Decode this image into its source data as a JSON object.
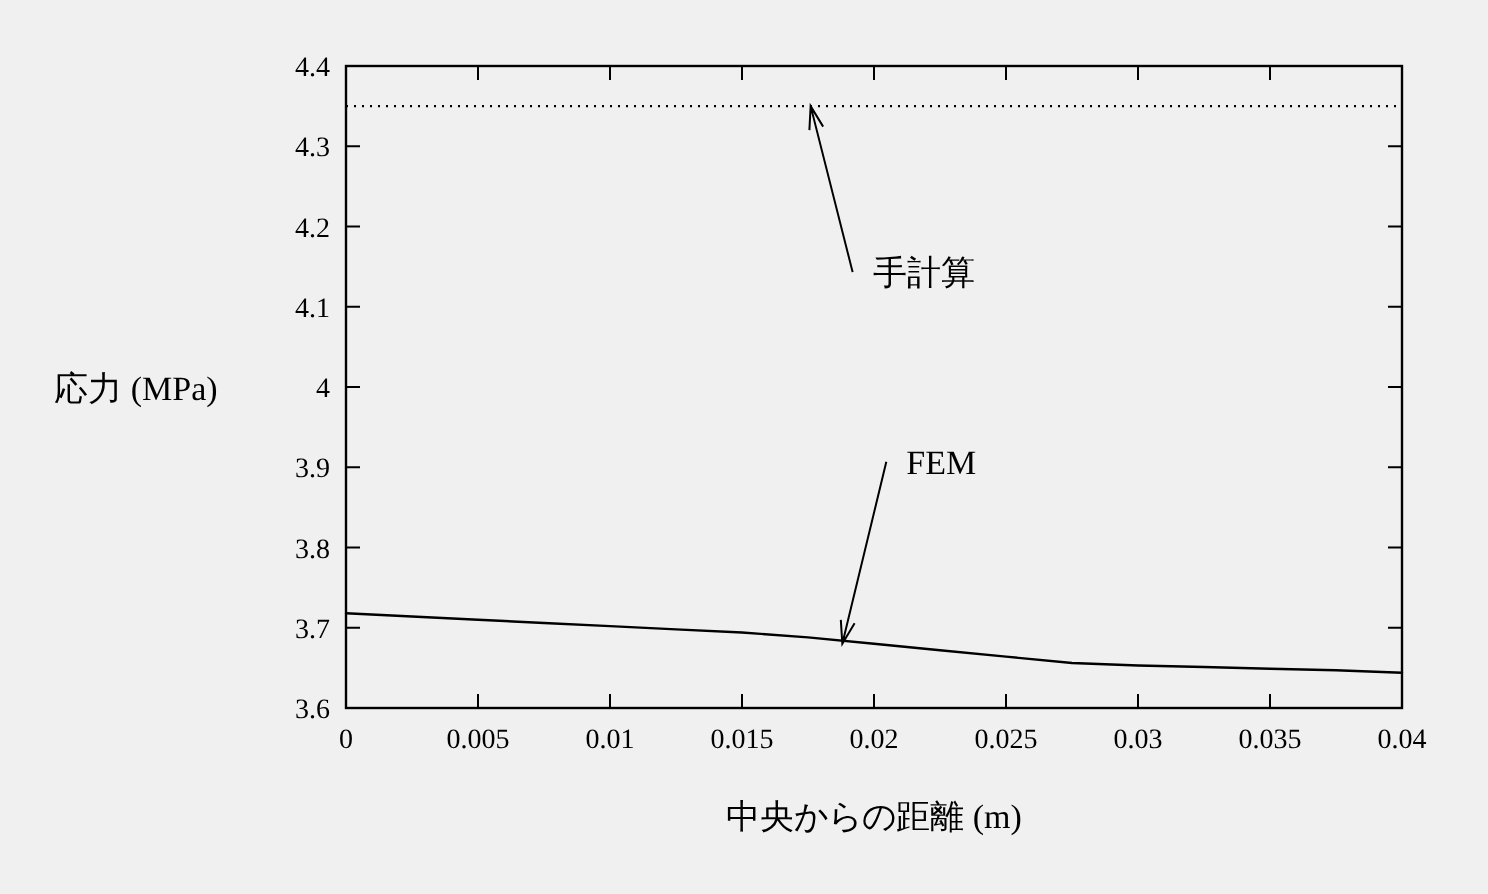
{
  "chart_data": {
    "type": "line",
    "xlabel": "中央からの距離 (m)",
    "ylabel": "応力 (MPa)",
    "xlim": [
      0,
      0.04
    ],
    "ylim": [
      3.6,
      4.4
    ],
    "xticks": [
      0,
      0.005,
      0.01,
      0.015,
      0.02,
      0.025,
      0.03,
      0.035,
      0.04
    ],
    "yticks": [
      3.6,
      3.7,
      3.8,
      3.9,
      4,
      4.1,
      4.2,
      4.3,
      4.4
    ],
    "grid": false,
    "series": [
      {
        "color": "#000000",
        "line_style": "solid",
        "x": [
          0,
          0.0025,
          0.005,
          0.0075,
          0.01,
          0.0125,
          0.015,
          0.0175,
          0.02,
          0.0225,
          0.025,
          0.0275,
          0.03,
          0.0325,
          0.035,
          0.0375,
          0.04
        ],
        "values": [
          3.718,
          3.714,
          3.71,
          3.706,
          3.702,
          3.698,
          3.694,
          3.688,
          3.68,
          3.672,
          3.664,
          3.656,
          3.653,
          3.651,
          3.649,
          3.647,
          3.644
        ]
      },
      {
        "color": "#000000",
        "line_style": "dotted",
        "x": [
          0,
          0.04
        ],
        "values": [
          4.35,
          4.35
        ]
      }
    ],
    "annotations": [
      {
        "text": "手計算",
        "x": 0.0176,
        "y": 4.35
      },
      {
        "text": "FEM",
        "x": 0.0188,
        "y": 3.68
      }
    ]
  }
}
